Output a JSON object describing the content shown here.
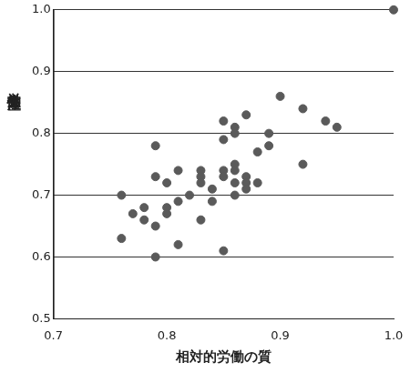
{
  "chart_data": {
    "type": "scatter",
    "x_label": "相対的労働の質",
    "y_label": "労働生産性",
    "x": [
      0.76,
      0.76,
      0.77,
      0.78,
      0.78,
      0.79,
      0.79,
      0.79,
      0.79,
      0.8,
      0.8,
      0.8,
      0.81,
      0.81,
      0.81,
      0.82,
      0.83,
      0.83,
      0.83,
      0.83,
      0.84,
      0.84,
      0.85,
      0.85,
      0.85,
      0.85,
      0.85,
      0.86,
      0.86,
      0.86,
      0.86,
      0.86,
      0.86,
      0.87,
      0.87,
      0.87,
      0.87,
      0.88,
      0.88,
      0.89,
      0.89,
      0.9,
      0.92,
      0.92,
      0.94,
      0.95,
      1.0
    ],
    "values": [
      0.7,
      0.63,
      0.67,
      0.68,
      0.66,
      0.78,
      0.73,
      0.65,
      0.6,
      0.72,
      0.68,
      0.67,
      0.74,
      0.69,
      0.62,
      0.7,
      0.74,
      0.73,
      0.72,
      0.66,
      0.71,
      0.69,
      0.82,
      0.79,
      0.74,
      0.73,
      0.61,
      0.81,
      0.8,
      0.75,
      0.74,
      0.72,
      0.7,
      0.83,
      0.73,
      0.72,
      0.71,
      0.77,
      0.72,
      0.8,
      0.78,
      0.86,
      0.84,
      0.75,
      0.82,
      0.81,
      1.0
    ],
    "color": "#5a5a5a",
    "marker": "circle",
    "xlim": [
      0.7,
      1.0
    ],
    "xticks": [
      0.7,
      0.8,
      0.9,
      {
        "value": 1.0,
        "label": "1.0"
      }
    ],
    "ylim": [
      0.5,
      1.0
    ],
    "yticks": [
      0.5,
      0.6,
      0.7,
      0.8,
      0.9,
      {
        "value": 1.0,
        "label": "1.0"
      }
    ],
    "grid": true
  }
}
